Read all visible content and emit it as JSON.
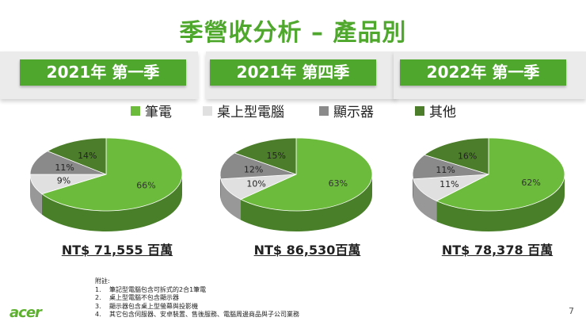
{
  "title": "季營收分析 – 產品別",
  "colors": {
    "accent": "#4fa82d",
    "notebook": "#6cbb3c",
    "desktop": "#e0e0e0",
    "display": "#8a8a8a",
    "other": "#4c7d2a"
  },
  "legend": [
    {
      "label": "筆電",
      "color": "#6cbb3c"
    },
    {
      "label": "桌上型電腦",
      "color": "#e0e0e0"
    },
    {
      "label": "顯示器",
      "color": "#8a8a8a"
    },
    {
      "label": "其他",
      "color": "#4c7d2a"
    }
  ],
  "chart_data": [
    {
      "type": "pie",
      "title": "2021年 第一季",
      "categories": [
        "筆電",
        "桌上型電腦",
        "顯示器",
        "其他"
      ],
      "values": [
        66,
        9,
        11,
        14
      ],
      "labels": [
        "66%",
        "9%",
        "11%",
        "14%"
      ],
      "total": "NT$ 71,555 百萬"
    },
    {
      "type": "pie",
      "title": "2021年 第四季",
      "categories": [
        "筆電",
        "桌上型電腦",
        "顯示器",
        "其他"
      ],
      "values": [
        63,
        10,
        12,
        15
      ],
      "labels": [
        "63%",
        "10%",
        "12%",
        "15%"
      ],
      "total": "NT$ 86,530百萬"
    },
    {
      "type": "pie",
      "title": "2022年 第一季",
      "categories": [
        "筆電",
        "桌上型電腦",
        "顯示器",
        "其他"
      ],
      "values": [
        62,
        11,
        11,
        16
      ],
      "labels": [
        "62%",
        "11%",
        "11%",
        "16%"
      ],
      "total": "NT$ 78,378 百萬"
    }
  ],
  "notes": {
    "heading": "附註:",
    "items": [
      {
        "num": "1.",
        "text": "筆記型電腦包含可拆式的2合1筆電"
      },
      {
        "num": "2.",
        "text": "桌上型電腦不包含顯示器"
      },
      {
        "num": "3.",
        "text": "顯示器包含桌上型螢幕與投影機"
      },
      {
        "num": "4.",
        "text": "其它包含伺服器、安卓裝置、售後服務、電腦周邊商品與子公司業務"
      }
    ]
  },
  "logo": "acer",
  "page_number": "7"
}
